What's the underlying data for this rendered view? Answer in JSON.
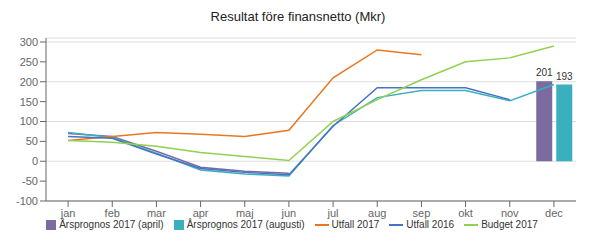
{
  "chart_data": {
    "type": "bar",
    "title": "Resultat före finansnetto (Mkr)",
    "categories": [
      "jan",
      "feb",
      "mar",
      "apr",
      "maj",
      "jun",
      "jul",
      "aug",
      "sep",
      "okt",
      "nov",
      "dec"
    ],
    "series": [
      {
        "name": "Årsprognos 2017 (april)",
        "type": "bar",
        "color": "#7B6BA0",
        "data_labels": true,
        "values": [
          null,
          null,
          null,
          null,
          null,
          null,
          null,
          null,
          null,
          null,
          null,
          201
        ]
      },
      {
        "name": "Årsprognos 2017 (augusti)",
        "type": "bar",
        "color": "#3AAFBE",
        "data_labels": true,
        "values": [
          null,
          null,
          null,
          null,
          null,
          null,
          null,
          null,
          null,
          null,
          null,
          193
        ]
      },
      {
        "name": "Årsprognos 2017 (april)",
        "type": "line",
        "color": "#7B6BA0",
        "values": [
          70,
          62,
          25,
          -15,
          -25,
          -30,
          null,
          null,
          null,
          null,
          null,
          null
        ]
      },
      {
        "name": "Årsprognos 2017 (augusti)",
        "type": "line",
        "color": "#3AAFBE",
        "values": [
          72,
          60,
          20,
          -22,
          -32,
          -37,
          90,
          160,
          178,
          178,
          152,
          193
        ]
      },
      {
        "name": "Utfall 2017",
        "type": "line",
        "color": "#E87722",
        "values": [
          52,
          62,
          72,
          68,
          62,
          78,
          210,
          280,
          268,
          null,
          null,
          null
        ]
      },
      {
        "name": "Utfall 2016",
        "type": "line",
        "color": "#4472C4",
        "values": [
          62,
          58,
          18,
          -18,
          -28,
          -34,
          88,
          185,
          185,
          185,
          155,
          null
        ]
      },
      {
        "name": "Budget 2017",
        "type": "line",
        "color": "#92D050",
        "values": [
          52,
          48,
          38,
          22,
          12,
          2,
          100,
          155,
          205,
          250,
          260,
          290
        ]
      }
    ],
    "ylim": [
      -100,
      310
    ],
    "yticks": [
      -100,
      -50,
      0,
      50,
      100,
      150,
      200,
      250,
      300
    ],
    "grid": true
  }
}
